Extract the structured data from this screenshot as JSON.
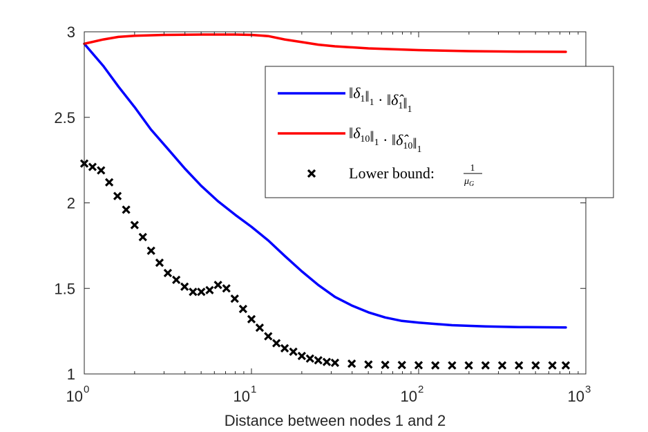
{
  "chart_data": {
    "type": "line",
    "xlabel": "Distance between nodes 1 and 2",
    "ylabel": "",
    "title": "",
    "xscale": "log",
    "xlim": [
      1,
      1000
    ],
    "ylim": [
      1,
      3
    ],
    "xticks": [
      {
        "base": "10",
        "exp": "0",
        "value": 1
      },
      {
        "base": "10",
        "exp": "1",
        "value": 10
      },
      {
        "base": "10",
        "exp": "2",
        "value": 100
      },
      {
        "base": "10",
        "exp": "3",
        "value": 1000
      }
    ],
    "yticks": [
      {
        "label": "1",
        "value": 1
      },
      {
        "label": "1.5",
        "value": 1.5
      },
      {
        "label": "2",
        "value": 2
      },
      {
        "label": "2.5",
        "value": 2.5
      },
      {
        "label": "3",
        "value": 3
      }
    ],
    "grid": false,
    "legend_position": "top-right",
    "series": [
      {
        "name": "‖δ1‖1 · ‖δ̂1‖1",
        "color": "#0000ff",
        "style": "line",
        "points": [
          [
            1.0,
            2.93
          ],
          [
            1.3,
            2.8
          ],
          [
            1.6,
            2.68
          ],
          [
            2.0,
            2.56
          ],
          [
            2.5,
            2.43
          ],
          [
            3.2,
            2.31
          ],
          [
            4.0,
            2.2
          ],
          [
            5.0,
            2.1
          ],
          [
            6.3,
            2.01
          ],
          [
            8.0,
            1.93
          ],
          [
            10.0,
            1.86
          ],
          [
            12.6,
            1.78
          ],
          [
            15.8,
            1.69
          ],
          [
            20.0,
            1.6
          ],
          [
            25.1,
            1.52
          ],
          [
            31.6,
            1.45
          ],
          [
            39.8,
            1.4
          ],
          [
            50.1,
            1.36
          ],
          [
            63.1,
            1.33
          ],
          [
            79.4,
            1.31
          ],
          [
            100.0,
            1.3
          ],
          [
            158.5,
            1.285
          ],
          [
            251.2,
            1.278
          ],
          [
            398.1,
            1.274
          ],
          [
            758.6,
            1.272
          ]
        ]
      },
      {
        "name": "‖δ10‖1 · ‖δ̂10‖1",
        "color": "#ff0000",
        "style": "line",
        "points": [
          [
            1.0,
            2.93
          ],
          [
            1.3,
            2.955
          ],
          [
            1.6,
            2.97
          ],
          [
            2.0,
            2.977
          ],
          [
            3.0,
            2.982
          ],
          [
            5.0,
            2.984
          ],
          [
            8.0,
            2.984
          ],
          [
            10.0,
            2.982
          ],
          [
            12.6,
            2.975
          ],
          [
            15.8,
            2.955
          ],
          [
            20.0,
            2.94
          ],
          [
            25.1,
            2.925
          ],
          [
            31.6,
            2.915
          ],
          [
            50.1,
            2.903
          ],
          [
            100.0,
            2.893
          ],
          [
            200.0,
            2.887
          ],
          [
            398.1,
            2.884
          ],
          [
            758.6,
            2.883
          ]
        ]
      },
      {
        "name": "Lower bound: 1/μG",
        "color": "#000000",
        "style": "x-marker",
        "points": [
          [
            1.0,
            2.23
          ],
          [
            1.12,
            2.21
          ],
          [
            1.26,
            2.19
          ],
          [
            1.41,
            2.12
          ],
          [
            1.58,
            2.04
          ],
          [
            1.78,
            1.96
          ],
          [
            2.0,
            1.87
          ],
          [
            2.24,
            1.8
          ],
          [
            2.51,
            1.72
          ],
          [
            2.82,
            1.65
          ],
          [
            3.16,
            1.59
          ],
          [
            3.55,
            1.55
          ],
          [
            3.98,
            1.51
          ],
          [
            4.47,
            1.48
          ],
          [
            5.01,
            1.48
          ],
          [
            5.62,
            1.49
          ],
          [
            6.31,
            1.52
          ],
          [
            7.08,
            1.5
          ],
          [
            7.94,
            1.44
          ],
          [
            8.91,
            1.38
          ],
          [
            10.0,
            1.32
          ],
          [
            11.2,
            1.27
          ],
          [
            12.6,
            1.22
          ],
          [
            14.1,
            1.18
          ],
          [
            15.8,
            1.15
          ],
          [
            17.8,
            1.13
          ],
          [
            20.0,
            1.105
          ],
          [
            22.4,
            1.09
          ],
          [
            25.1,
            1.08
          ],
          [
            28.2,
            1.07
          ],
          [
            31.6,
            1.065
          ],
          [
            39.8,
            1.06
          ],
          [
            50.1,
            1.055
          ],
          [
            63.1,
            1.053
          ],
          [
            79.4,
            1.052
          ],
          [
            100.0,
            1.051
          ],
          [
            125.9,
            1.05
          ],
          [
            158.5,
            1.05
          ],
          [
            199.5,
            1.05
          ],
          [
            251.2,
            1.05
          ],
          [
            316.2,
            1.05
          ],
          [
            398.1,
            1.05
          ],
          [
            501.2,
            1.05
          ],
          [
            631.0,
            1.05
          ],
          [
            758.6,
            1.05
          ]
        ]
      }
    ]
  },
  "legend": {
    "entries": [
      {
        "parts": [
          {
            "t": "‖",
            "sub": false,
            "italic": false
          },
          {
            "t": "δ",
            "sub": false,
            "italic": true
          },
          {
            "t": "1",
            "sub": true,
            "italic": false
          },
          {
            "t": "‖",
            "sub": false,
            "italic": false
          },
          {
            "t": "1",
            "sub": true,
            "italic": false
          },
          {
            "t": " · ‖",
            "sub": false,
            "italic": false
          },
          {
            "t": "δ̂",
            "sub": false,
            "italic": true
          },
          {
            "t": "1",
            "sub": true,
            "italic": false
          },
          {
            "t": "‖",
            "sub": false,
            "italic": false
          },
          {
            "t": "1",
            "sub": true,
            "italic": false
          }
        ]
      },
      {
        "parts": [
          {
            "t": "‖",
            "sub": false,
            "italic": false
          },
          {
            "t": "δ",
            "sub": false,
            "italic": true
          },
          {
            "t": "10",
            "sub": true,
            "italic": false
          },
          {
            "t": "‖",
            "sub": false,
            "italic": false
          },
          {
            "t": "1",
            "sub": true,
            "italic": false
          },
          {
            "t": " · ‖",
            "sub": false,
            "italic": false
          },
          {
            "t": "δ̂",
            "sub": false,
            "italic": true
          },
          {
            "t": "10",
            "sub": true,
            "italic": false
          },
          {
            "t": "‖",
            "sub": false,
            "italic": false
          },
          {
            "t": "1",
            "sub": true,
            "italic": false
          }
        ]
      },
      {
        "label": "Lower bound: ",
        "frac_num": "1",
        "frac_den_main": "μ",
        "frac_den_sub": "G"
      }
    ]
  }
}
